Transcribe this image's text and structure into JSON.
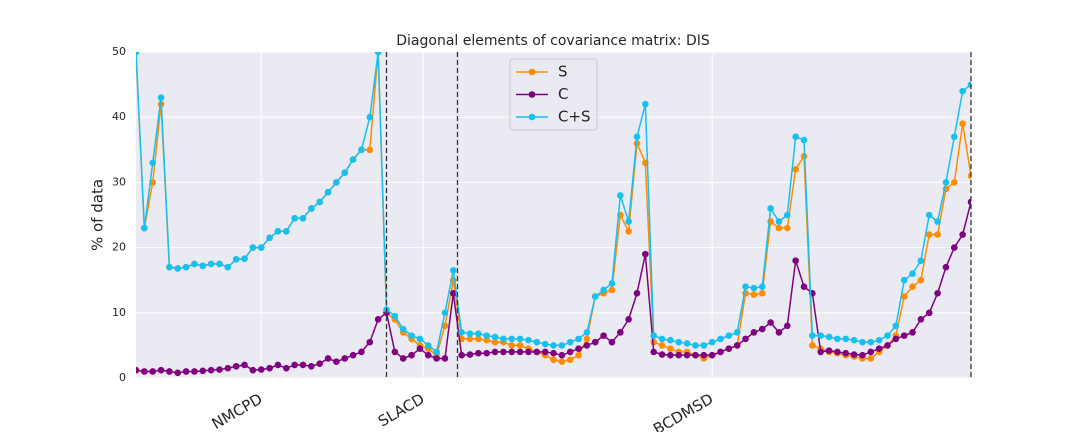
{
  "chart_data": {
    "type": "line",
    "title": "Diagonal elements of covariance matrix: DIS",
    "ylabel": "% of data",
    "x": [
      0,
      1,
      2,
      3,
      4,
      5,
      6,
      7,
      8,
      9,
      10,
      11,
      12,
      13,
      14,
      15,
      16,
      17,
      18,
      19,
      20,
      21,
      22,
      23,
      24,
      25,
      26,
      27,
      28,
      29,
      30,
      31,
      32,
      33,
      34,
      35,
      36,
      37,
      38,
      39,
      40,
      41,
      42,
      43,
      44,
      45,
      46,
      47,
      48,
      49,
      50,
      51,
      52,
      53,
      54,
      55,
      56,
      57,
      58,
      59,
      60,
      61,
      62,
      63,
      64,
      65,
      66,
      67,
      68,
      69,
      70,
      71,
      72,
      73,
      74,
      75,
      76,
      77,
      78,
      79,
      80,
      81,
      82,
      83,
      84,
      85,
      86,
      87,
      88,
      89,
      90,
      91,
      92,
      93,
      94,
      95,
      96,
      97,
      98,
      99,
      100
    ],
    "xlim": [
      0,
      100
    ],
    "xticks": [
      {
        "value": 15,
        "label": "NMCPD"
      },
      {
        "value": 34.4,
        "label": "SLACD"
      },
      {
        "value": 69,
        "label": "BCDMSD"
      }
    ],
    "vlines": [
      30,
      38.5,
      100
    ],
    "ylim": [
      0,
      50
    ],
    "yticks": [
      0,
      10,
      20,
      30,
      40,
      50
    ],
    "grid": true,
    "legend": "upper center",
    "series": [
      {
        "name": "S",
        "color": "#ff8c00",
        "values": [
          50,
          23,
          30,
          42,
          17,
          16.8,
          17,
          17.5,
          17.2,
          17.5,
          17.5,
          17,
          18.2,
          18.3,
          20,
          20,
          21.5,
          22.5,
          22.5,
          24.5,
          24.5,
          26,
          27,
          28.5,
          30,
          31.5,
          33.5,
          35,
          35,
          50,
          10,
          9,
          7,
          6,
          5,
          4.5,
          3.5,
          8,
          15,
          6,
          6,
          6,
          5.8,
          5.5,
          5.5,
          5,
          5,
          4.5,
          4,
          3.5,
          2.8,
          2.5,
          2.8,
          3.5,
          6,
          12.5,
          13,
          13.5,
          25,
          22.5,
          36,
          33,
          5.5,
          5,
          4.5,
          4,
          4,
          3.5,
          3,
          3.5,
          4,
          4.5,
          5,
          13,
          12.8,
          13,
          24,
          23,
          23,
          32,
          34,
          5,
          4.5,
          4,
          3.8,
          3.5,
          3.3,
          3,
          3,
          4,
          5,
          6.5,
          12.5,
          14,
          15,
          22,
          22,
          29,
          30,
          39,
          31
        ]
      },
      {
        "name": "C",
        "color": "#800080",
        "values": [
          1.2,
          1,
          1,
          1.2,
          1,
          0.8,
          1,
          1,
          1.1,
          1.2,
          1.3,
          1.5,
          1.8,
          2,
          1.2,
          1.3,
          1.5,
          2,
          1.5,
          2,
          2,
          1.8,
          2.2,
          3,
          2.5,
          3,
          3.5,
          4,
          5.5,
          9,
          10,
          4,
          3,
          3.5,
          4.5,
          3.5,
          3,
          3,
          13,
          3.5,
          3.6,
          3.8,
          3.8,
          4,
          4,
          4,
          4,
          4,
          4,
          4,
          3.8,
          3.5,
          4,
          4.5,
          5,
          5.5,
          6.5,
          5.5,
          7,
          9,
          13,
          19,
          4,
          3.6,
          3.5,
          3.5,
          3.5,
          3.5,
          3.5,
          3.5,
          4,
          4.5,
          5,
          6,
          7,
          7.5,
          8.5,
          7,
          8,
          18,
          14,
          13,
          4,
          4.2,
          4,
          3.8,
          3.6,
          3.5,
          4,
          4.5,
          5,
          6,
          6.5,
          7,
          9,
          10,
          13,
          17,
          20,
          22,
          27
        ]
      },
      {
        "name": "C+S",
        "color": "#17c0f0",
        "values": [
          50,
          23,
          33,
          43,
          17,
          16.8,
          17,
          17.5,
          17.2,
          17.5,
          17.5,
          17,
          18.2,
          18.3,
          20,
          20,
          21.5,
          22.5,
          22.5,
          24.5,
          24.5,
          26,
          27,
          28.5,
          30,
          31.5,
          33.5,
          35,
          40,
          50,
          10.5,
          9.5,
          7.5,
          6.5,
          6,
          5,
          4,
          10,
          16.5,
          7,
          6.8,
          6.8,
          6.5,
          6.3,
          6,
          6,
          6,
          5.8,
          5.5,
          5.2,
          5,
          5,
          5.5,
          6,
          7,
          12.5,
          13.5,
          14.5,
          28,
          24,
          37,
          42,
          6.5,
          6,
          5.8,
          5.5,
          5.3,
          5,
          5,
          5.5,
          6,
          6.5,
          7,
          14,
          13.8,
          14,
          26,
          24,
          25,
          37,
          36.5,
          6.5,
          6.5,
          6.3,
          6,
          6,
          5.8,
          5.5,
          5.5,
          5.8,
          6.5,
          8,
          15,
          16,
          18,
          25,
          24,
          30,
          37,
          44,
          45
        ]
      }
    ]
  }
}
